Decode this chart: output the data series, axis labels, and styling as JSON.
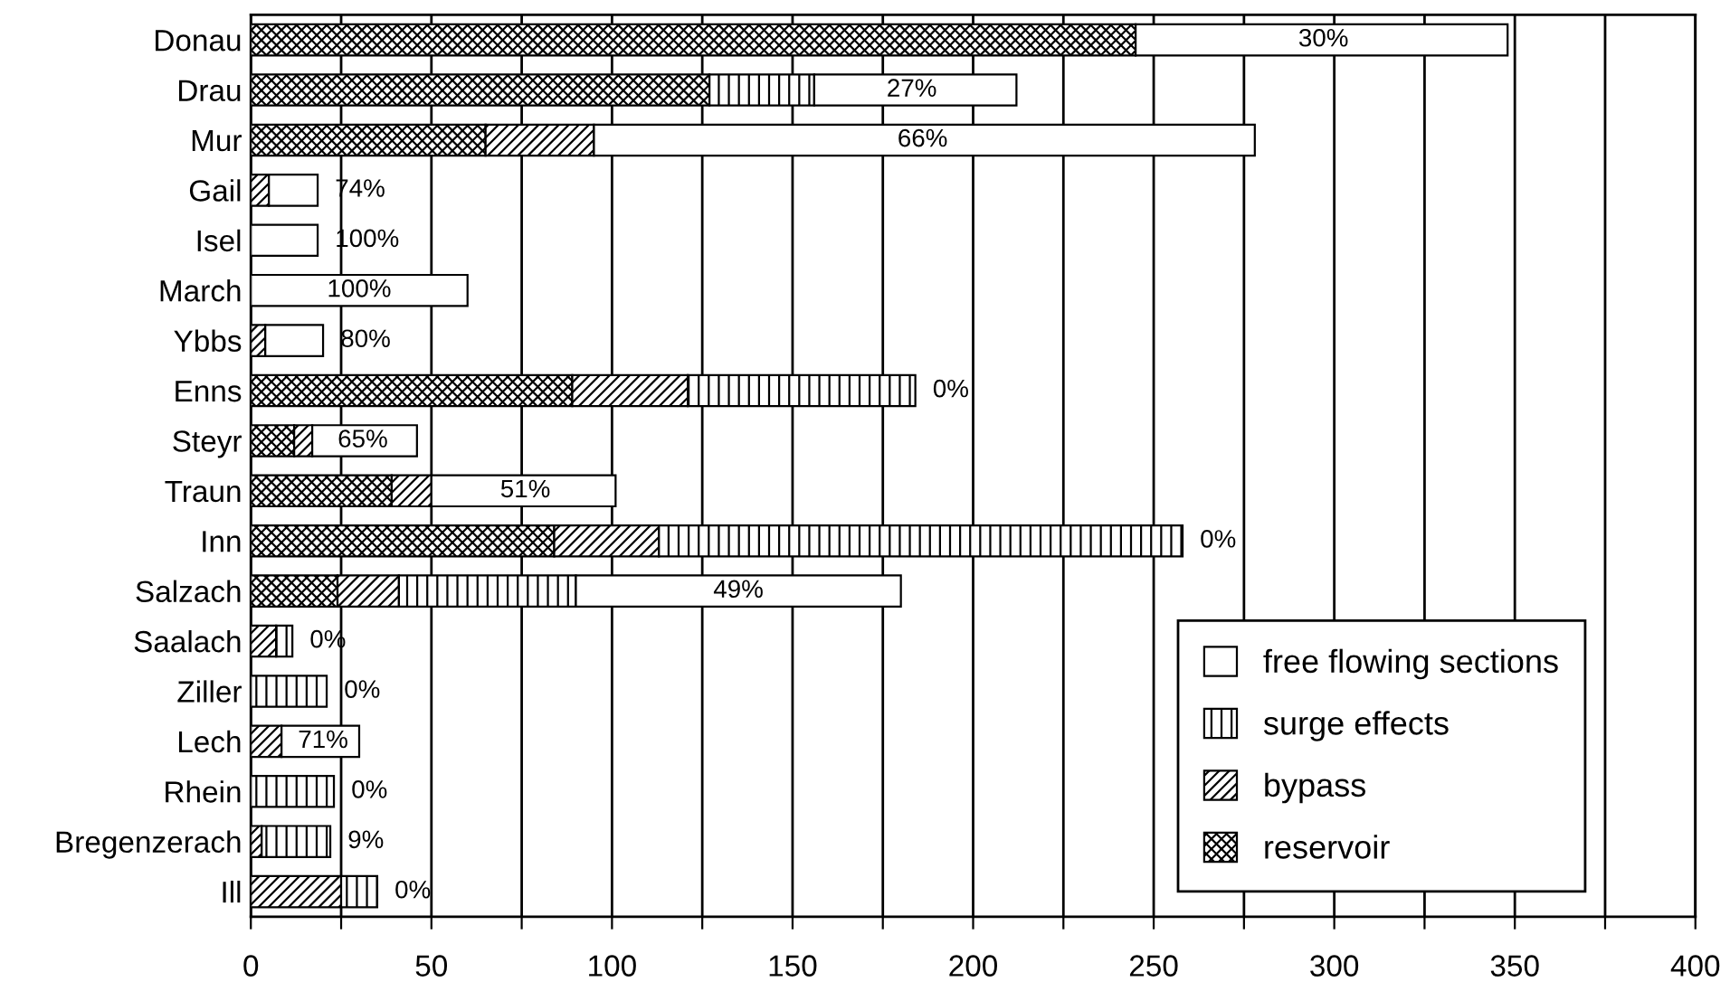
{
  "chart_data": {
    "type": "bar",
    "orientation": "horizontal",
    "stacked": true,
    "categories": [
      "Donau",
      "Drau",
      "Mur",
      "Gail",
      "Isel",
      "March",
      "Ybbs",
      "Enns",
      "Steyr",
      "Traun",
      "Inn",
      "Salzach",
      "Saalach",
      "Ziller",
      "Lech",
      "Rhein",
      "Bregenzerach",
      "Ill"
    ],
    "series": [
      {
        "name": "reservoir",
        "color": "#000000",
        "values": [
          245,
          127,
          65,
          0,
          0,
          0,
          0,
          89,
          12,
          39,
          84,
          24,
          0,
          0,
          0,
          0,
          0,
          0
        ]
      },
      {
        "name": "bypass",
        "color": "#000000",
        "values": [
          0,
          0,
          30,
          5,
          0,
          0,
          4,
          32,
          5,
          11,
          29,
          17,
          7,
          0,
          8.5,
          0,
          3,
          25
        ]
      },
      {
        "name": "surge effects",
        "color": "#000000",
        "values": [
          0,
          29,
          0,
          0,
          0,
          0,
          0,
          63,
          0,
          0,
          145,
          49,
          4.5,
          21,
          0,
          23,
          19,
          10
        ]
      },
      {
        "name": "free flowing sections",
        "color": "#ffffff",
        "values": [
          103,
          56,
          183,
          13.5,
          18.5,
          60,
          16,
          0,
          29,
          51,
          0,
          90,
          0,
          0,
          21.5,
          0,
          0,
          0
        ]
      }
    ],
    "annotations": [
      {
        "text": "30%",
        "x": 297,
        "y": "Donau"
      },
      {
        "text": "27%",
        "x": 183,
        "y": "Drau"
      },
      {
        "text": "66%",
        "x": 186,
        "y": "Mur"
      },
      {
        "text": "74%",
        "x": 18.5,
        "y": "Gail"
      },
      {
        "text": "100%",
        "x": 18.5,
        "y": "Isel"
      },
      {
        "text": "100%",
        "x": 30,
        "y": "March"
      },
      {
        "text": "80%",
        "x": 20,
        "y": "Ybbs"
      },
      {
        "text": "0%",
        "x": 184,
        "y": "Enns"
      },
      {
        "text": "65%",
        "x": 31,
        "y": "Steyr"
      },
      {
        "text": "51%",
        "x": 76,
        "y": "Traun"
      },
      {
        "text": "0%",
        "x": 258,
        "y": "Inn"
      },
      {
        "text": "49%",
        "x": 135,
        "y": "Salzach"
      },
      {
        "text": "0%",
        "x": 11.5,
        "y": "Saalach"
      },
      {
        "text": "0%",
        "x": 21,
        "y": "Ziller"
      },
      {
        "text": "71%",
        "x": 20,
        "y": "Lech"
      },
      {
        "text": "0%",
        "x": 23,
        "y": "Rhein"
      },
      {
        "text": "9%",
        "x": 22,
        "y": "Bregenzerach"
      },
      {
        "text": "0%",
        "x": 35,
        "y": "Ill"
      }
    ],
    "xlim": [
      0,
      400
    ],
    "xticks": [
      0,
      {
        "value": 25,
        "label": null
      },
      50,
      {
        "value": 75,
        "label": null
      },
      100,
      {
        "value": 125,
        "label": null
      },
      150,
      {
        "value": 175,
        "label": null
      },
      200,
      {
        "value": 225,
        "label": null
      },
      250,
      {
        "value": 275,
        "label": null
      },
      300,
      {
        "value": 325,
        "label": null
      },
      350,
      {
        "value": 375,
        "label": null
      },
      400
    ],
    "grid": "x",
    "legend": "bottom right"
  }
}
